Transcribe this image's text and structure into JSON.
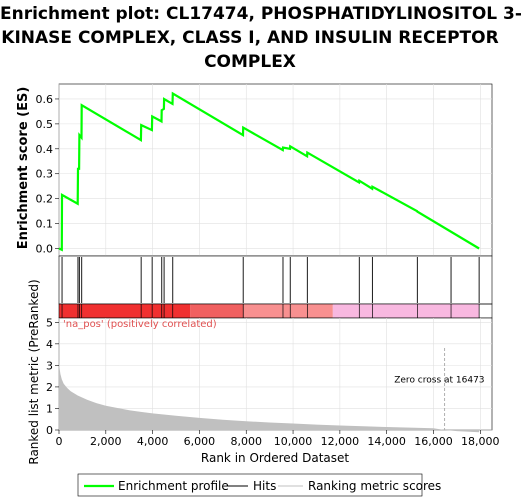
{
  "title_lines": [
    "Enrichment plot: CL17474, PHOSPHATIDYLINOSITOL 3-",
    "KINASE COMPLEX, CLASS I, AND INSULIN RECEPTOR",
    "COMPLEX"
  ],
  "colors": {
    "es_line": "#00ff00",
    "hits": "#000000",
    "metric_fill": "#c0c0c0",
    "pos_label": "#e05050",
    "heat_red_dark": "#f03030",
    "heat_red_mid": "#f06060",
    "heat_red_light": "#f89090",
    "heat_pink": "#f8b8e0",
    "grid": "#e0e0e0",
    "zero_cross": "#b0b0b0"
  },
  "chart_data": [
    {
      "type": "line",
      "role": "enrichment-profile",
      "ylabel": "Enrichment score (ES)",
      "xlim": [
        0,
        18500
      ],
      "ylim": [
        -0.03,
        0.66
      ],
      "yticks": [
        0.0,
        0.1,
        0.2,
        0.3,
        0.4,
        0.5,
        0.6
      ],
      "ytick_labels": [
        "0.0",
        "0.1",
        "0.2",
        "0.3",
        "0.4",
        "0.5",
        "0.6"
      ],
      "grid": true,
      "series": [
        {
          "name": "Enrichment profile",
          "x": [
            0,
            120,
            130,
            800,
            810,
            860,
            870,
            960,
            970,
            3500,
            3510,
            3970,
            3980,
            4380,
            4390,
            4480,
            4490,
            4850,
            4860,
            7860,
            7870,
            9560,
            9570,
            9870,
            9880,
            10600,
            10610,
            12820,
            12830,
            13380,
            13390,
            15300,
            15310,
            17950
          ],
          "y": [
            0.0,
            -0.005,
            0.215,
            0.18,
            0.32,
            0.32,
            0.455,
            0.445,
            0.575,
            0.435,
            0.495,
            0.475,
            0.53,
            0.51,
            0.555,
            0.56,
            0.6,
            0.58,
            0.622,
            0.455,
            0.485,
            0.395,
            0.405,
            0.4,
            0.41,
            0.37,
            0.385,
            0.265,
            0.272,
            0.24,
            0.248,
            0.15,
            0.148,
            0.0
          ]
        }
      ]
    },
    {
      "type": "scatter",
      "role": "hits",
      "hit_positions": [
        130,
        810,
        870,
        970,
        3510,
        3980,
        4390,
        4490,
        4860,
        7870,
        9570,
        9880,
        10610,
        12830,
        13390,
        15310,
        16750,
        17950
      ]
    },
    {
      "type": "heatmap",
      "role": "ranking-gradient",
      "segments": [
        {
          "from": 0,
          "to": 5600,
          "color": "heat_red_dark"
        },
        {
          "from": 5600,
          "to": 7900,
          "color": "heat_red_mid"
        },
        {
          "from": 7900,
          "to": 11700,
          "color": "heat_red_light"
        },
        {
          "from": 11700,
          "to": 17950,
          "color": "heat_pink"
        }
      ]
    },
    {
      "type": "area",
      "role": "ranked-list-metric",
      "xlabel": "Rank in Ordered Dataset",
      "ylabel": "Ranked list metric (PreRanked)",
      "xlim": [
        0,
        18500
      ],
      "ylim": [
        0,
        5.2
      ],
      "xticks": [
        0,
        2000,
        4000,
        6000,
        8000,
        10000,
        12000,
        14000,
        16000,
        18000
      ],
      "xtick_labels": [
        "0",
        "2,000",
        "4,000",
        "6,000",
        "8,000",
        "10,000",
        "12,000",
        "14,000",
        "16,000",
        "18,000"
      ],
      "yticks": [
        0,
        1,
        2,
        3,
        4,
        5
      ],
      "ytick_labels": [
        "0",
        "1",
        "2",
        "3",
        "4",
        "5"
      ],
      "grid": true,
      "x": [
        0,
        20,
        60,
        120,
        200,
        350,
        500,
        800,
        1200,
        1600,
        2000,
        2500,
        3000,
        3500,
        4000,
        5000,
        6000,
        7000,
        8000,
        9000,
        10000,
        11000,
        12000,
        13000,
        14000,
        15000,
        16000,
        16473,
        17000,
        17950
      ],
      "y": [
        3.2,
        2.9,
        2.6,
        2.35,
        2.15,
        1.95,
        1.8,
        1.6,
        1.4,
        1.25,
        1.13,
        1.02,
        0.92,
        0.84,
        0.77,
        0.66,
        0.56,
        0.48,
        0.41,
        0.35,
        0.3,
        0.25,
        0.21,
        0.17,
        0.14,
        0.11,
        0.08,
        0.0,
        -0.05,
        -0.1
      ],
      "annotations": {
        "positive_label": "'na_pos' (positively correlated)",
        "zero_cross_label": "Zero cross at 16473",
        "zero_cross_x": 16473
      }
    }
  ],
  "legend": {
    "items": [
      {
        "label": "Enrichment profile",
        "color": "#00ff00"
      },
      {
        "label": "Hits",
        "color": "#000000"
      },
      {
        "label": "Ranking metric scores",
        "color": "#c0c0c0"
      }
    ]
  }
}
